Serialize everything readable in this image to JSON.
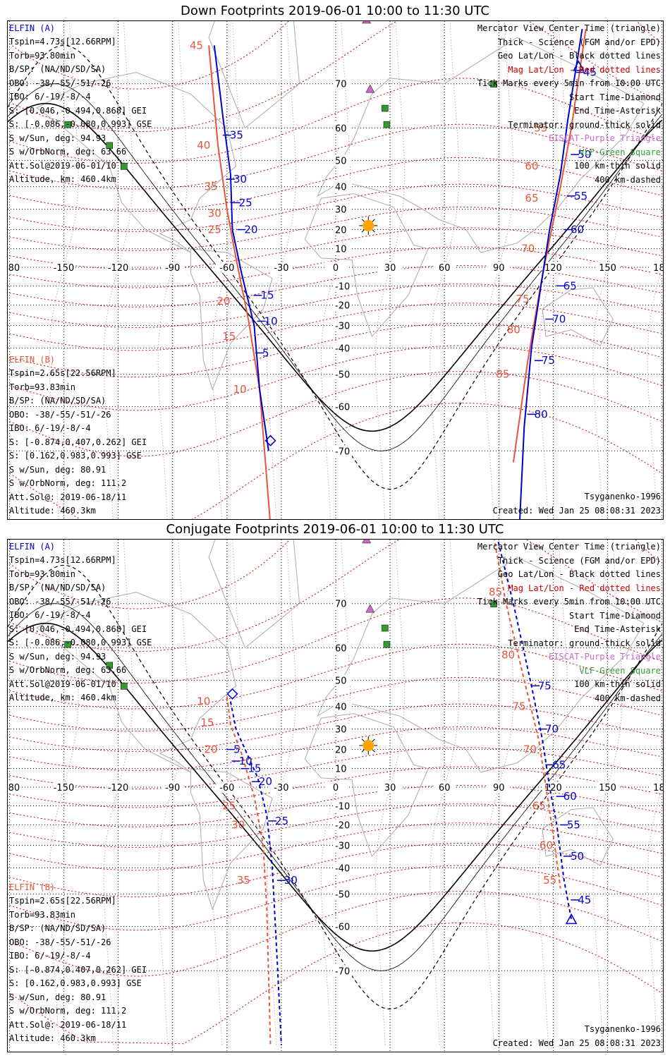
{
  "colors": {
    "elfin_a": "#0000cc",
    "elfin_b": "#e8553a",
    "maggrid": "#cc0000",
    "geogrid": "#000000",
    "eiscat": "#cc66cc",
    "vlf": "#339933",
    "sun": "#ffa500"
  },
  "panels": [
    {
      "title": "Down Footprints 2019-06-01 10:00 to 11:30 UTC",
      "elfin_a": {
        "name": "ELFIN (A)",
        "lines": [
          "Tspin=4.73s[12.66RPM]",
          "Torb=93.80min",
          "B/SP: (NA/ND/SD/SA)",
          "OBO: -38/-55/-51/-26",
          "IBO: 6/-19/-8/-4",
          "S: [0.046,-0.494,0.868] GEI",
          "S: [-0.086,-0.080,0.993] GSE",
          "S w/Sun, deg: 94.93",
          "S w/OrbNorm, deg: 63.66",
          "Att.Sol@2019-06-01/10",
          "Altitude, km: 460.4km"
        ]
      },
      "elfin_b": {
        "name": "ELFIN (B)",
        "lines": [
          "Tspin=2.65s[22.56RPM]",
          "Torb=93.83min",
          "B/SP: (NA/ND/SD/SA)",
          "OBO: -38/-55/-51/-26",
          "IBO: 6/-19/-8/-4",
          "S: [-0.874,0.407,0.262] GEI",
          "S: [0.162,0.983,0.993] GSE",
          "S w/Sun, deg: 80.91",
          "S w/OrbNorm, deg: 111.2",
          "Att.Sol@: 2019-06-18/11",
          "Altitude: 460.3km"
        ]
      },
      "legend": [
        "Mercator View Center Time (triangle)",
        "Thick - Science (FGM and/or EPD)",
        "Geo Lat/Lon - Black dotted lines",
        "Mag Lat/Lon - Red dotted lines",
        "Tick Marks every 5min from 10:00 UTC",
        "Start Time-Diamond",
        "End Time-Asterisk",
        "Terminator: ground-thick solid",
        "EISCAT-Purple Triangle",
        "VLF-Green Square",
        "100 km-thin solid",
        "400 km-dashed"
      ],
      "model": "Tsyganenko-1996",
      "created": "Created: Wed Jan 25 08:08:31 2023",
      "a_ticks": [
        "35",
        "30",
        "25",
        "20",
        "15",
        "10",
        "5",
        "45",
        "50",
        "55",
        "60",
        "65",
        "70",
        "75",
        "80"
      ],
      "b_ticks": [
        "45",
        "40",
        "35",
        "30",
        "25",
        "20",
        "15",
        "10",
        "55",
        "60",
        "65",
        "70",
        "75",
        "80",
        "85"
      ]
    },
    {
      "title": "Conjugate Footprints 2019-06-01 10:00 to 11:30 UTC",
      "elfin_a": {
        "name": "ELFIN (A)",
        "lines": [
          "Tspin=4.73s[12.66RPM]",
          "Torb=93.80min",
          "B/SP: (NA/ND/SD/SA)",
          "OBO: -38/-55/-51/-26",
          "IBO: 6/-19/-8/-4",
          "S: [0.046,-0.494,0.868] GEI",
          "S: [-0.086,-0.080,0.993] GSE",
          "S w/Sun, deg: 94.93",
          "S w/OrbNorm, deg: 63.66",
          "Att.Sol@2019-06-01/10",
          "Altitude, km: 460.4km"
        ]
      },
      "elfin_b": {
        "name": "ELFIN (B)",
        "lines": [
          "Tspin=2.65s[22.56RPM]",
          "Torb=93.83min",
          "B/SP: (NA/ND/SD/SA)",
          "OBO: -38/-55/-51/-26",
          "IBO: 6/-19/-8/-4",
          "S: [-0.874,0.407,0.262] GEI",
          "S: [0.162,0.983,0.993] GSE",
          "S w/Sun, deg: 80.91",
          "S w/OrbNorm, deg: 111.2",
          "Att.Sol@: 2019-06-18/11",
          "Altitude: 460.3km"
        ]
      },
      "legend": [
        "Mercator View Center Time (triangle)",
        "Thick - Science (FGM and/or EPD)",
        "Geo Lat/Lon - Black dotted lines",
        "Mag Lat/Lon - Red dotted lines",
        "Tick Marks every 5min from 10:00 UTC",
        "Start Time-Diamond",
        "End Time-Asterisk",
        "Terminator: ground-thick solid",
        "EISCAT-Purple Triangle",
        "VLF-Green Square",
        "100 km-thin solid",
        "400 km-dashed"
      ],
      "model": "Tsyganenko-1996",
      "created": "Created: Wed Jan 25 08:08:31 2023",
      "a_ticks": [
        "5",
        "10",
        "15",
        "20",
        "25",
        "30",
        "75",
        "70",
        "65",
        "60",
        "55",
        "50",
        "45"
      ],
      "b_ticks": [
        "10",
        "15",
        "20",
        "25",
        "30",
        "35",
        "85",
        "80",
        "75",
        "70",
        "65",
        "60",
        "55"
      ]
    }
  ],
  "axes": {
    "lon_ticks": [
      "-180",
      "-150",
      "-120",
      "-90",
      "-60",
      "-30",
      "0",
      "30",
      "60",
      "90",
      "120",
      "150",
      "180"
    ],
    "lat_ticks": [
      "70",
      "60",
      "50",
      "40",
      "30",
      "20",
      "10",
      "-10",
      "-20",
      "-30",
      "-40",
      "-50",
      "-60",
      "-70"
    ]
  }
}
